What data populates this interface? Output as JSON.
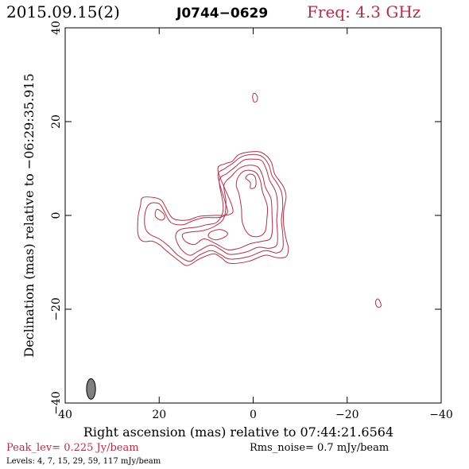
{
  "header": {
    "date": "2015.09.15(2)",
    "source": "J0744−0629",
    "freq": "Freq: 4.3 GHz"
  },
  "colors": {
    "contour": "#b0304a",
    "accent": "#b0304a",
    "axis": "#000000",
    "beam_fill": "#808080"
  },
  "chart_data": {
    "type": "contour",
    "xlabel": "Right ascension (mas) relative to 07:44:21.6564",
    "ylabel": "Declination (mas) relative to −06:29:35.915",
    "xlim": [
      40,
      -40
    ],
    "ylim": [
      -40,
      40
    ],
    "x_ticks": [
      40,
      20,
      0,
      -20,
      -40
    ],
    "y_ticks": [
      -40,
      -20,
      0,
      20,
      40
    ],
    "x_tick_labels": [
      "40",
      "20",
      "0",
      "−20",
      "−40"
    ],
    "y_tick_labels": [
      "−40",
      "−20",
      "0",
      "20",
      "40"
    ],
    "contour_levels_mJy": [
      4,
      7,
      15,
      29,
      59,
      117
    ],
    "beam": {
      "x": 34.5,
      "y": -37,
      "major": 4.4,
      "minor": 1.9,
      "pa_deg": 0
    },
    "contours": [
      {
        "level": 4,
        "points": [
          [
            23.5,
            3.8
          ],
          [
            21,
            3.8
          ],
          [
            19.5,
            3.2
          ],
          [
            18.5,
            1.5
          ],
          [
            17,
            -0.7
          ],
          [
            14,
            -1
          ],
          [
            11.5,
            -0.2
          ],
          [
            8.5,
            0
          ],
          [
            5,
            0.2
          ],
          [
            4.5,
            2
          ],
          [
            7.5,
            9.5
          ],
          [
            6,
            11
          ],
          [
            4.5,
            11.5
          ],
          [
            3,
            13
          ],
          [
            0,
            13.6
          ],
          [
            -2,
            13.3
          ],
          [
            -3.8,
            11.5
          ],
          [
            -4.5,
            9
          ],
          [
            -5.5,
            7.5
          ],
          [
            -6.5,
            6
          ],
          [
            -7,
            4
          ],
          [
            -6.5,
            1
          ],
          [
            -6.5,
            -2
          ],
          [
            -7,
            -5
          ],
          [
            -7.5,
            -7
          ],
          [
            -7,
            -8.8
          ],
          [
            -5,
            -9
          ],
          [
            -2.5,
            -8.5
          ],
          [
            1,
            -9.8
          ],
          [
            5,
            -10.2
          ],
          [
            6.8,
            -9
          ],
          [
            8.5,
            -8.2
          ],
          [
            11.5,
            -9.3
          ],
          [
            14,
            -10.7
          ],
          [
            16,
            -9.5
          ],
          [
            18.5,
            -7.5
          ],
          [
            20,
            -6.2
          ],
          [
            21.5,
            -5.5
          ],
          [
            23.5,
            -5.5
          ],
          [
            24.5,
            -4
          ],
          [
            24.5,
            -0.5
          ],
          [
            24,
            2
          ]
        ]
      },
      {
        "level": 7,
        "points": [
          [
            22,
            2.5
          ],
          [
            20,
            2.5
          ],
          [
            19,
            1
          ],
          [
            17.5,
            -1.5
          ],
          [
            15,
            -2
          ],
          [
            13,
            -1.2
          ],
          [
            10.5,
            -0.5
          ],
          [
            7,
            -0.4
          ],
          [
            5.5,
            0.6
          ],
          [
            6,
            3
          ],
          [
            7.5,
            8.5
          ],
          [
            6,
            10
          ],
          [
            4.5,
            11
          ],
          [
            2.5,
            12.5
          ],
          [
            0,
            13
          ],
          [
            -2,
            12.5
          ],
          [
            -3.3,
            10.8
          ],
          [
            -4,
            8.5
          ],
          [
            -5,
            7
          ],
          [
            -6,
            5
          ],
          [
            -6.3,
            2
          ],
          [
            -6,
            -1
          ],
          [
            -6.3,
            -4
          ],
          [
            -6.3,
            -7
          ],
          [
            -5,
            -8
          ],
          [
            -2.5,
            -7.5
          ],
          [
            1,
            -8.8
          ],
          [
            5,
            -9.3
          ],
          [
            7,
            -8.3
          ],
          [
            9,
            -7.5
          ],
          [
            11.5,
            -8.5
          ],
          [
            13.5,
            -9.8
          ],
          [
            16,
            -8.5
          ],
          [
            18,
            -6.5
          ],
          [
            20,
            -5
          ],
          [
            22,
            -4
          ],
          [
            23,
            -2.5
          ],
          [
            23,
            0.5
          ]
        ]
      },
      {
        "level": 15,
        "points": [
          [
            7.8,
            -1.5
          ],
          [
            6.5,
            0.6
          ],
          [
            6.5,
            3
          ],
          [
            7.2,
            7.5
          ],
          [
            5.5,
            9
          ],
          [
            4,
            10.2
          ],
          [
            2,
            11.8
          ],
          [
            0,
            12
          ],
          [
            -1.8,
            11.7
          ],
          [
            -2.8,
            9.8
          ],
          [
            -3.5,
            7.5
          ],
          [
            -4.8,
            5
          ],
          [
            -5.2,
            2
          ],
          [
            -5,
            -1
          ],
          [
            -5.2,
            -4
          ],
          [
            -5,
            -6.3
          ],
          [
            -3.5,
            -7
          ],
          [
            -1,
            -6.8
          ],
          [
            1.5,
            -7.8
          ],
          [
            5,
            -8.3
          ],
          [
            7,
            -7.2
          ],
          [
            9,
            -6.3
          ],
          [
            11.5,
            -7.5
          ],
          [
            13.5,
            -8.5
          ],
          [
            15.5,
            -7
          ],
          [
            16.5,
            -4.5
          ],
          [
            15.5,
            -3
          ],
          [
            12,
            -2.5
          ],
          [
            10,
            -2
          ]
        ]
      },
      {
        "level": 29,
        "points": [
          [
            8,
            -2.2
          ],
          [
            6.2,
            -0.5
          ],
          [
            5.8,
            3
          ],
          [
            6.2,
            6.5
          ],
          [
            4.5,
            8.5
          ],
          [
            3,
            10
          ],
          [
            1,
            10.7
          ],
          [
            -1,
            10.3
          ],
          [
            -2,
            8.5
          ],
          [
            -2.6,
            6
          ],
          [
            -3.8,
            3.5
          ],
          [
            -4,
            0
          ],
          [
            -4.1,
            -3
          ],
          [
            -3.6,
            -5
          ],
          [
            -2,
            -5.5
          ],
          [
            0.5,
            -6
          ],
          [
            3,
            -7
          ],
          [
            5.5,
            -7.3
          ],
          [
            8,
            -6
          ],
          [
            10.5,
            -5
          ],
          [
            12.5,
            -6.2
          ],
          [
            14.5,
            -5.5
          ],
          [
            15,
            -4
          ],
          [
            13,
            -3.5
          ],
          [
            10.5,
            -3.2
          ]
        ]
      },
      {
        "level": 59,
        "points": [
          [
            3,
            4.5
          ],
          [
            3.6,
            6.5
          ],
          [
            3,
            8.5
          ],
          [
            1.5,
            9.6
          ],
          [
            -0.5,
            9.2
          ],
          [
            -1.5,
            7.5
          ],
          [
            -2,
            5
          ],
          [
            -3,
            2
          ],
          [
            -2.9,
            -1
          ],
          [
            -2.5,
            -3.5
          ],
          [
            -1,
            -4.5
          ],
          [
            1,
            -4
          ],
          [
            2.3,
            -1.5
          ],
          [
            2.5,
            1.5
          ]
        ]
      },
      {
        "level": 117,
        "points": [
          [
            0.6,
            7
          ],
          [
            1.6,
            8
          ],
          [
            0.8,
            8.8
          ],
          [
            -0.2,
            8.5
          ],
          [
            -0.6,
            7.3
          ],
          [
            -0.4,
            6
          ],
          [
            0.6,
            5.8
          ]
        ]
      },
      {
        "level": 59,
        "points": [
          [
            9,
            -3.5
          ],
          [
            7,
            -3
          ],
          [
            5.5,
            -3.7
          ],
          [
            6,
            -4.6
          ],
          [
            8,
            -5.2
          ],
          [
            9.5,
            -4.5
          ]
        ]
      },
      {
        "level": 15,
        "points": [
          [
            20.5,
            1.3
          ],
          [
            19.2,
            0.5
          ],
          [
            18.8,
            -0.5
          ],
          [
            19.6,
            -1
          ],
          [
            20.8,
            -0.2
          ]
        ]
      },
      {
        "level": 4,
        "points": [
          [
            -0.4,
            26
          ],
          [
            -0.9,
            25.3
          ],
          [
            -0.8,
            24.4
          ],
          [
            -0.2,
            24.2
          ],
          [
            0.1,
            25
          ],
          [
            0,
            25.9
          ]
        ]
      },
      {
        "level": 4,
        "points": [
          [
            -26.5,
            -17.8
          ],
          [
            -27,
            -18.4
          ],
          [
            -27.2,
            -19.3
          ],
          [
            -26.6,
            -19.6
          ],
          [
            -26.1,
            -19
          ],
          [
            -26.1,
            -18.2
          ]
        ]
      }
    ]
  },
  "footer": {
    "peak": "Peak_lev=  0.225 Jy/beam",
    "rms": "Rms_noise=  0.7 mJy/beam",
    "levels": "Levels:  4,  7,  15,  29,  59,  117 mJy/beam"
  }
}
